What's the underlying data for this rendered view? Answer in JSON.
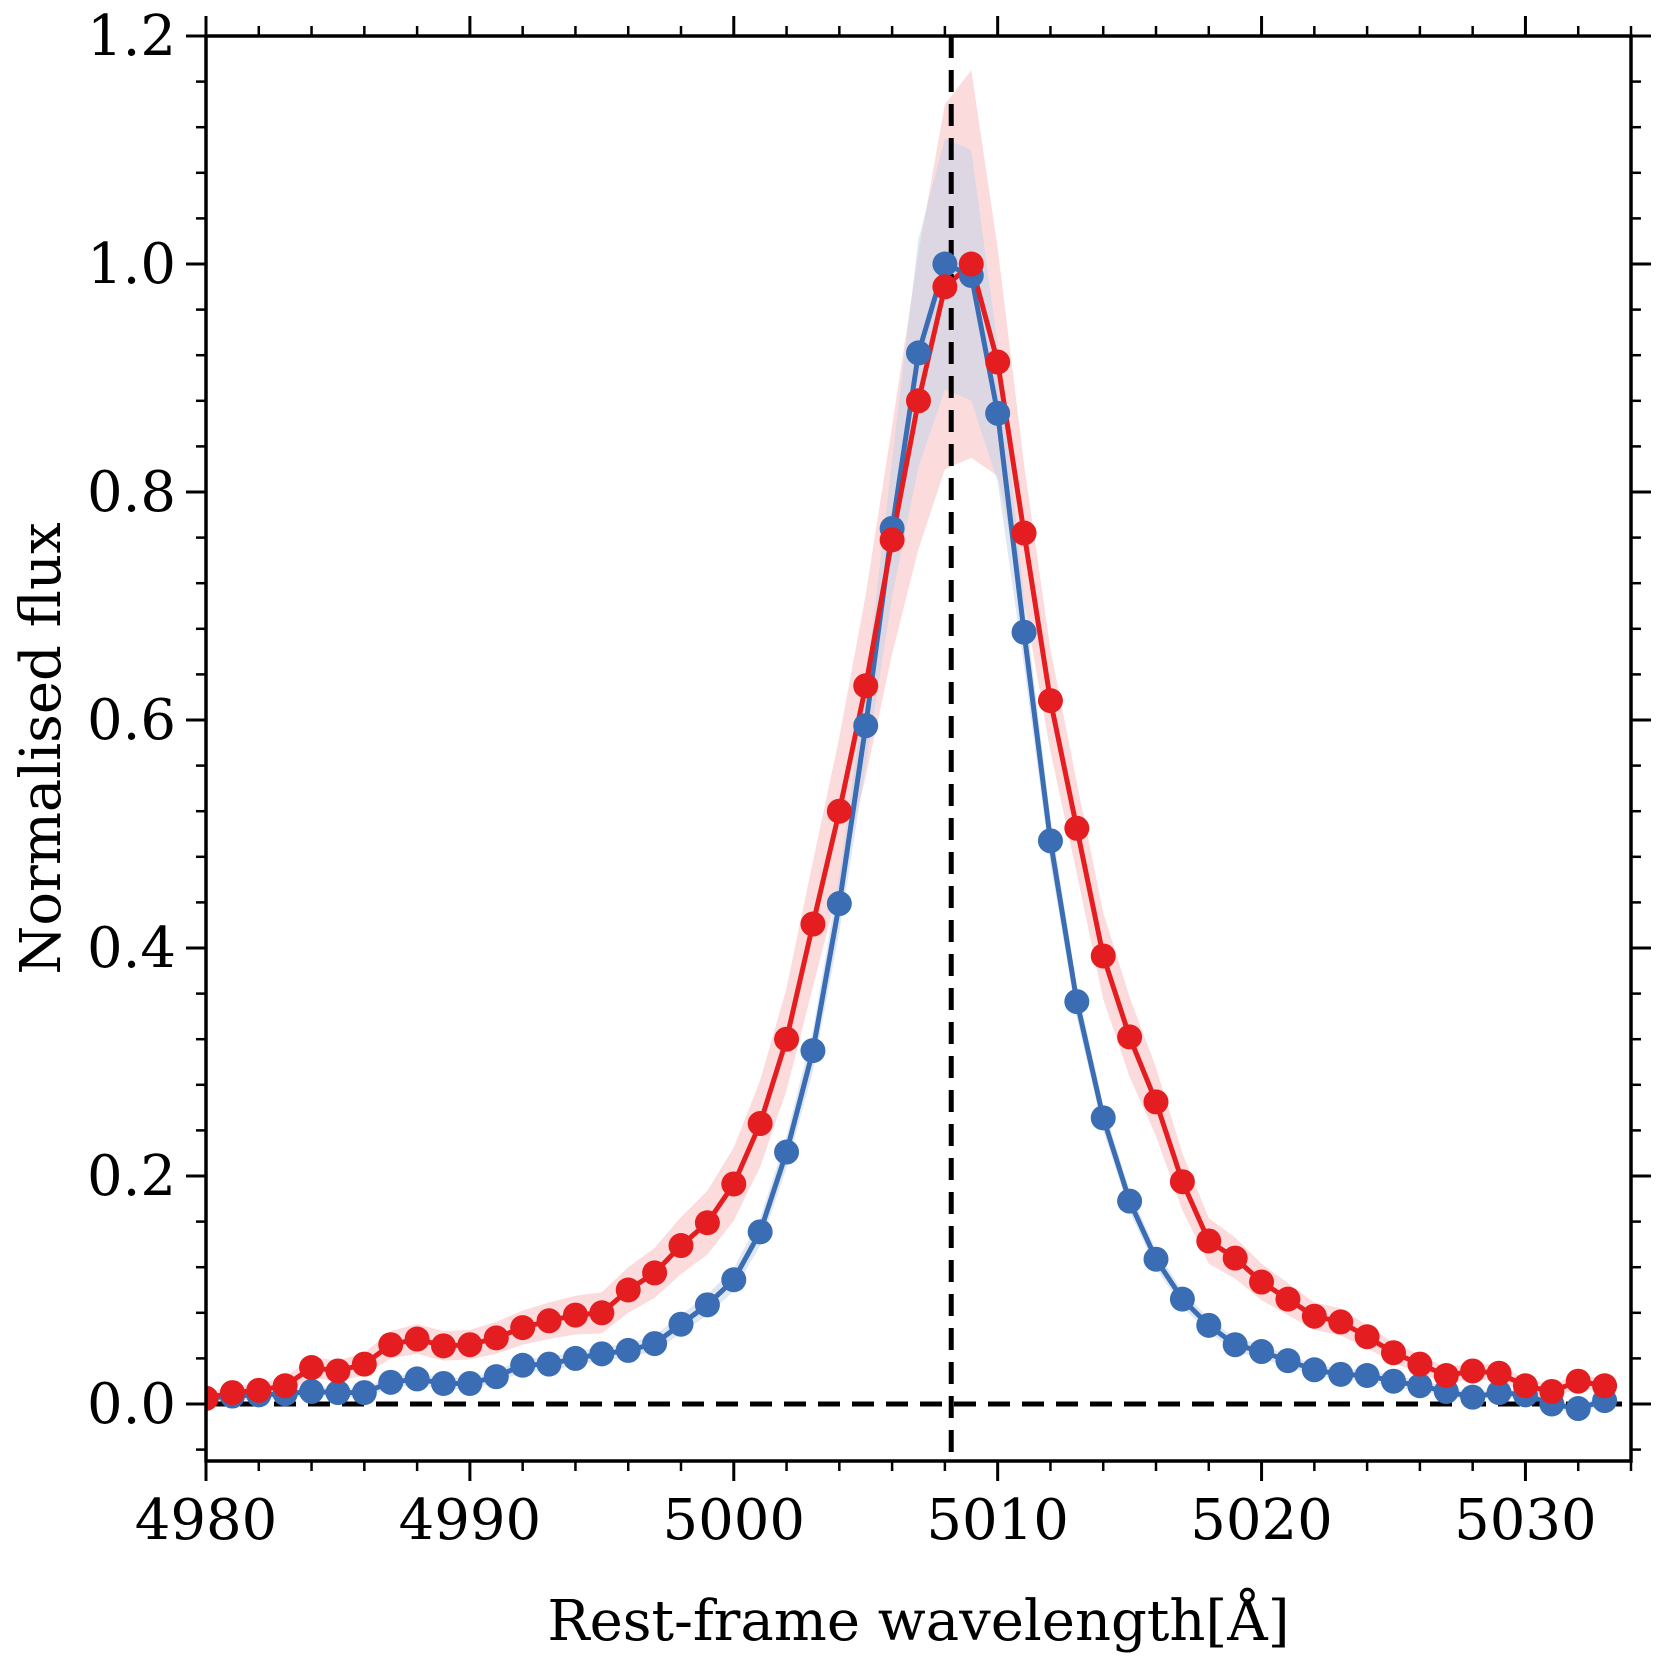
{
  "chart_data": {
    "type": "line",
    "title": "",
    "xlabel": "Rest-frame wavelength[Å]",
    "ylabel": "Normalised flux",
    "xlim": [
      4980,
      5034
    ],
    "ylim": [
      -0.05,
      1.2
    ],
    "xticks": [
      4980,
      4990,
      5000,
      5010,
      5020,
      5030
    ],
    "xtick_labels": [
      "4980",
      "4990",
      "5000",
      "5010",
      "5020",
      "5030"
    ],
    "yticks": [
      0.0,
      0.2,
      0.4,
      0.6,
      0.8,
      1.0,
      1.2
    ],
    "ytick_labels": [
      "0.0",
      "0.2",
      "0.4",
      "0.6",
      "0.8",
      "1.0",
      "1.2"
    ],
    "reference_lines": {
      "vertical_x": 5008.24,
      "horizontal_y": 0.0
    },
    "x": [
      4980,
      4981,
      4982,
      4983,
      4984,
      4985,
      4986,
      4987,
      4988,
      4989,
      4990,
      4991,
      4992,
      4993,
      4994,
      4995,
      4996,
      4997,
      4998,
      4999,
      5000,
      5001,
      5002,
      5003,
      5004,
      5005,
      5006,
      5007,
      5008,
      5009,
      5010,
      5011,
      5012,
      5013,
      5014,
      5015,
      5016,
      5017,
      5018,
      5019,
      5020,
      5021,
      5022,
      5023,
      5024,
      5025,
      5026,
      5027,
      5028,
      5029,
      5030,
      5031,
      5032,
      5033
    ],
    "series": [
      {
        "name": "blue",
        "color": "#3a6db3",
        "band_color": "#c5d3ea",
        "values": [
          0.005,
          0.007,
          0.008,
          0.009,
          0.011,
          0.01,
          0.01,
          0.019,
          0.022,
          0.018,
          0.018,
          0.024,
          0.034,
          0.035,
          0.04,
          0.044,
          0.047,
          0.053,
          0.07,
          0.087,
          0.109,
          0.151,
          0.221,
          0.31,
          0.439,
          0.595,
          0.768,
          0.922,
          1.0,
          0.99,
          0.869,
          0.677,
          0.494,
          0.353,
          0.251,
          0.178,
          0.127,
          0.092,
          0.069,
          0.052,
          0.046,
          0.038,
          0.03,
          0.026,
          0.025,
          0.02,
          0.016,
          0.011,
          0.006,
          0.01,
          0.008,
          0.0,
          -0.004,
          0.003
        ],
        "band_halfwidth": [
          0.004,
          0.004,
          0.004,
          0.004,
          0.004,
          0.004,
          0.004,
          0.005,
          0.005,
          0.005,
          0.005,
          0.005,
          0.006,
          0.006,
          0.006,
          0.006,
          0.006,
          0.007,
          0.008,
          0.009,
          0.01,
          0.012,
          0.014,
          0.018,
          0.025,
          0.035,
          0.06,
          0.1,
          0.11,
          0.11,
          0.06,
          0.03,
          0.02,
          0.014,
          0.011,
          0.009,
          0.008,
          0.007,
          0.006,
          0.006,
          0.006,
          0.005,
          0.005,
          0.005,
          0.005,
          0.005,
          0.005,
          0.004,
          0.004,
          0.004,
          0.004,
          0.004,
          0.004,
          0.004
        ]
      },
      {
        "name": "red",
        "color": "#e41e20",
        "band_color": "#f9cfd0",
        "values": [
          0.005,
          0.01,
          0.012,
          0.016,
          0.032,
          0.029,
          0.035,
          0.052,
          0.057,
          0.051,
          0.052,
          0.058,
          0.067,
          0.073,
          0.078,
          0.08,
          0.1,
          0.115,
          0.139,
          0.159,
          0.193,
          0.246,
          0.32,
          0.421,
          0.52,
          0.63,
          0.758,
          0.88,
          0.98,
          1.0,
          0.914,
          0.764,
          0.617,
          0.505,
          0.393,
          0.322,
          0.265,
          0.195,
          0.143,
          0.128,
          0.107,
          0.092,
          0.077,
          0.072,
          0.059,
          0.045,
          0.035,
          0.025,
          0.029,
          0.027,
          0.016,
          0.011,
          0.02,
          0.016
        ],
        "band_halfwidth": [
          0.005,
          0.006,
          0.006,
          0.007,
          0.009,
          0.009,
          0.01,
          0.012,
          0.013,
          0.013,
          0.013,
          0.014,
          0.015,
          0.016,
          0.017,
          0.018,
          0.02,
          0.022,
          0.025,
          0.028,
          0.032,
          0.038,
          0.045,
          0.055,
          0.065,
          0.08,
          0.1,
          0.13,
          0.16,
          0.17,
          0.1,
          0.06,
          0.045,
          0.04,
          0.038,
          0.035,
          0.03,
          0.025,
          0.02,
          0.018,
          0.016,
          0.014,
          0.012,
          0.012,
          0.01,
          0.009,
          0.008,
          0.007,
          0.007,
          0.007,
          0.006,
          0.006,
          0.006,
          0.006
        ]
      }
    ]
  }
}
